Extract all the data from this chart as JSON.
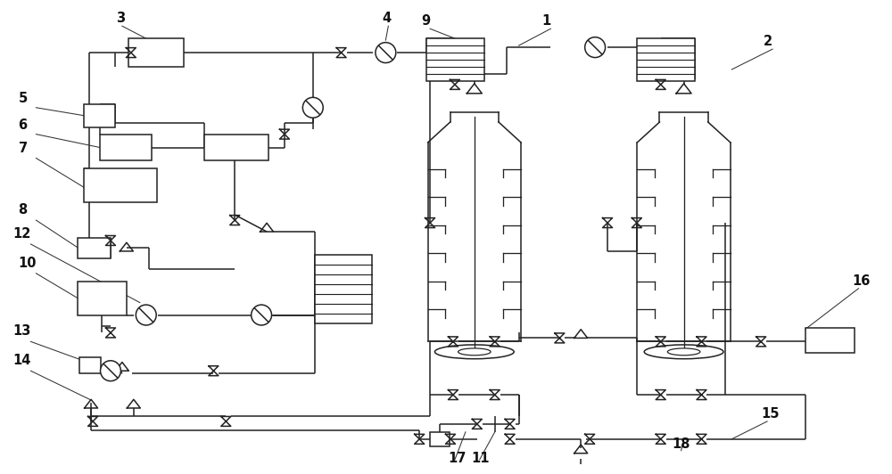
{
  "fig_width": 10.0,
  "fig_height": 5.32,
  "dpi": 100,
  "bg_color": "#ffffff",
  "line_color": "#222222",
  "lw": 1.1
}
